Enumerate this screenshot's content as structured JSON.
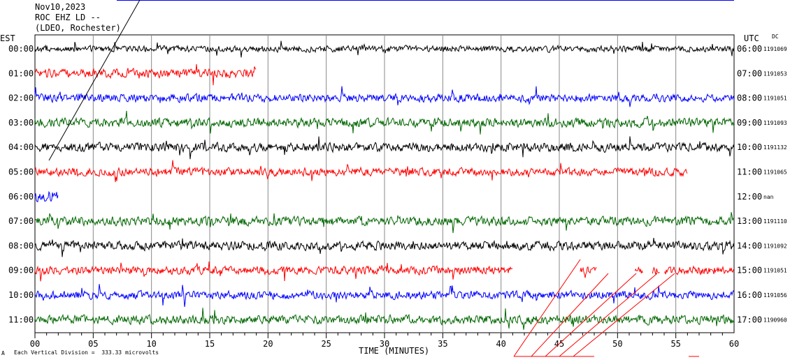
{
  "header": {
    "date": "Nov10,2023",
    "station": "ROC EHZ LD --",
    "network": "(LDEO, Rochester)"
  },
  "left_tz": "EST",
  "right_tz": "UTC",
  "dc_label": "DC",
  "footer": {
    "scale_mark": "A",
    "scale_text": "Each Vertical Division =  333.33 microvolts"
  },
  "colors": {
    "black": "#000000",
    "red": "#ff0000",
    "blue": "#0000ff",
    "green": "#006600",
    "grid": "#888888"
  },
  "chart_data": {
    "type": "line",
    "xlabel": "TIME (MINUTES)",
    "xlim": [
      0,
      60
    ],
    "x_ticks": [
      "00",
      "05",
      "10",
      "15",
      "20",
      "25",
      "30",
      "35",
      "40",
      "45",
      "50",
      "55",
      "60"
    ],
    "grid": true,
    "series": [
      {
        "left_label": "00:00",
        "right_label": "06:00",
        "count": "1191069",
        "color": "black",
        "end_min": 60,
        "amp": 0.7
      },
      {
        "left_label": "01:00",
        "right_label": "07:00",
        "count": "1191053",
        "color": "red",
        "end_min": 19,
        "amp": 1.0
      },
      {
        "left_label": "02:00",
        "right_label": "08:00",
        "count": "1191051",
        "color": "blue",
        "end_min": 60,
        "amp": 0.9
      },
      {
        "left_label": "03:00",
        "right_label": "09:00",
        "count": "1191093",
        "color": "green",
        "end_min": 60,
        "amp": 1.0
      },
      {
        "left_label": "04:00",
        "right_label": "10:00",
        "count": "1191132",
        "color": "black",
        "end_min": 60,
        "amp": 1.0
      },
      {
        "left_label": "05:00",
        "right_label": "11:00",
        "count": "1191065",
        "color": "red",
        "end_min": 56,
        "amp": 0.9
      },
      {
        "left_label": "06:00",
        "right_label": "12:00",
        "count": "nan",
        "color": "blue",
        "end_min": 2,
        "amp": 1.3
      },
      {
        "left_label": "07:00",
        "right_label": "13:00",
        "count": "1191110",
        "color": "green",
        "end_min": 60,
        "amp": 1.0
      },
      {
        "left_label": "08:00",
        "right_label": "14:00",
        "count": "1191092",
        "color": "black",
        "end_min": 60,
        "amp": 1.0
      },
      {
        "left_label": "09:00",
        "right_label": "15:00",
        "count": "1191051",
        "color": "red",
        "end_min": 60,
        "amp": 0.9,
        "segments": [
          [
            0,
            41
          ],
          [
            46.8,
            48.2
          ],
          [
            51.5,
            52.2
          ],
          [
            53,
            53.6
          ],
          [
            54,
            60
          ]
        ]
      },
      {
        "left_label": "10:00",
        "right_label": "16:00",
        "count": "1191056",
        "color": "blue",
        "end_min": 60,
        "amp": 0.9
      },
      {
        "left_label": "11:00",
        "right_label": "17:00",
        "count": "1190960",
        "color": "green",
        "end_min": 60,
        "amp": 1.0
      }
    ]
  }
}
